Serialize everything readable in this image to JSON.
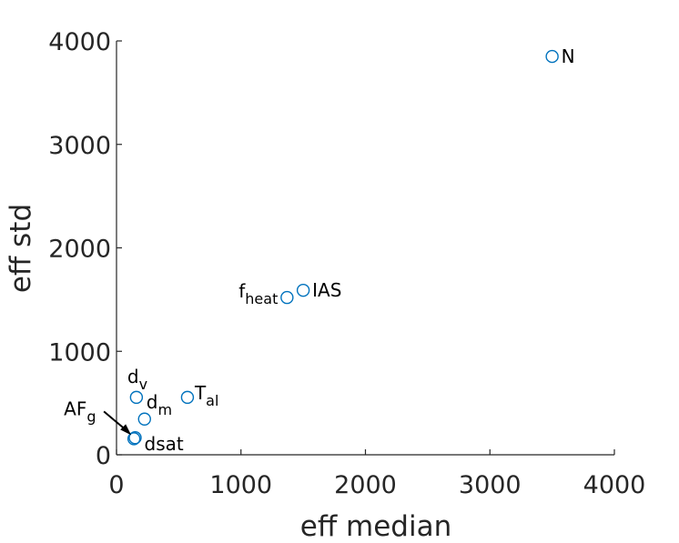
{
  "chart_data": {
    "type": "scatter",
    "title": "",
    "xlabel": "eff median",
    "ylabel": "eff std",
    "xlim": [
      0,
      4000
    ],
    "ylim": [
      0,
      4000
    ],
    "x_ticks": [
      "0",
      "1000",
      "2000",
      "3000",
      "4000"
    ],
    "y_ticks": [
      "0",
      "1000",
      "2000",
      "3000",
      "4000"
    ],
    "grid": false,
    "marker_color": "#0072BD",
    "points": [
      {
        "base": "N",
        "sub": "",
        "x": 3500,
        "y": 3850
      },
      {
        "base": "IAS",
        "sub": "",
        "x": 1500,
        "y": 1590
      },
      {
        "base": "f",
        "sub": "heat",
        "x": 1370,
        "y": 1520
      },
      {
        "base": "T",
        "sub": "al",
        "x": 570,
        "y": 555
      },
      {
        "base": "d",
        "sub": "v",
        "x": 160,
        "y": 555
      },
      {
        "base": "d",
        "sub": "m",
        "x": 225,
        "y": 345
      },
      {
        "base": "dsat",
        "sub": "",
        "x": 150,
        "y": 165
      },
      {
        "base": "AF",
        "sub": "g",
        "x": 140,
        "y": 155
      }
    ]
  }
}
